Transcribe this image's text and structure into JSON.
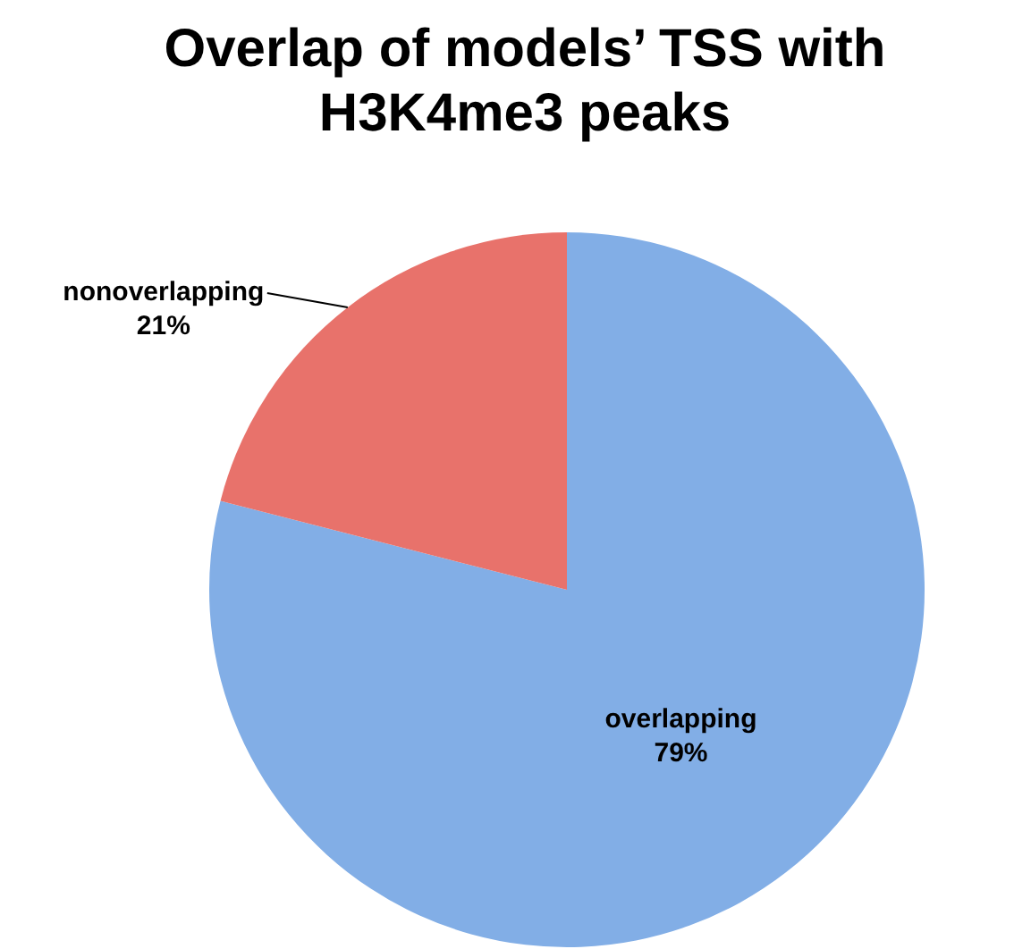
{
  "chart_data": {
    "type": "pie",
    "title": "Overlap of models’ TSS with H3K4me3 peaks",
    "categories": [
      "overlapping",
      "nonoverlapping"
    ],
    "values": [
      79,
      21
    ],
    "colors": [
      "#82aee6",
      "#e8726b"
    ],
    "value_labels": [
      "79%",
      "21%"
    ],
    "legend": false
  }
}
